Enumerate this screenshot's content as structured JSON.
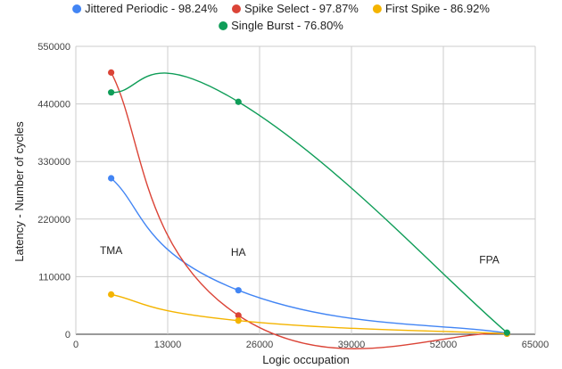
{
  "chart_data": {
    "type": "scatter",
    "xlabel": "Logic occupation",
    "ylabel": "Latency - Number of cycles",
    "xlim": [
      0,
      65000
    ],
    "ylim": [
      0,
      550000
    ],
    "xticks": [
      0,
      13000,
      26000,
      39000,
      52000,
      65000
    ],
    "yticks": [
      0,
      110000,
      220000,
      330000,
      440000,
      550000
    ],
    "grid": true,
    "legend_position": "top",
    "series": [
      {
        "name": "Jittered Periodic - 98.24%",
        "color": "#4285f4",
        "points": [
          [
            5000,
            298000
          ],
          [
            23000,
            84000
          ],
          [
            61000,
            2000
          ]
        ]
      },
      {
        "name": "Spike Select - 97.87%",
        "color": "#db4437",
        "points": [
          [
            5000,
            500000
          ],
          [
            23000,
            36000
          ],
          [
            61000,
            1000
          ]
        ]
      },
      {
        "name": "First Spike - 86.92%",
        "color": "#f4b400",
        "points": [
          [
            5000,
            76000
          ],
          [
            23000,
            26000
          ],
          [
            61000,
            1000
          ]
        ]
      },
      {
        "name": "Single Burst - 76.80%",
        "color": "#0f9d58",
        "points": [
          [
            5000,
            462000
          ],
          [
            23000,
            444000
          ],
          [
            61000,
            3000
          ]
        ]
      }
    ],
    "annotations": [
      {
        "text": "TMA",
        "x": 5000,
        "y": 153000
      },
      {
        "text": "HA",
        "x": 23000,
        "y": 150000
      },
      {
        "text": "FPA",
        "x": 58500,
        "y": 135000
      }
    ]
  }
}
